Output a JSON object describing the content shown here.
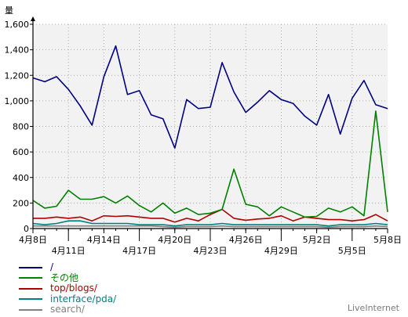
{
  "chart_data": {
    "type": "line",
    "ylabel": "量",
    "ylim": [
      0,
      1600
    ],
    "yticks": [
      "0",
      "200",
      "400",
      "600",
      "800",
      "1,000",
      "1,200",
      "1,400",
      "1,600"
    ],
    "xticks_upper": [
      {
        "i": 0,
        "label": "4月8日"
      },
      {
        "i": 6,
        "label": "4月14日"
      },
      {
        "i": 12,
        "label": "4月20日"
      },
      {
        "i": 18,
        "label": "4月26日"
      },
      {
        "i": 24,
        "label": "5月2日"
      },
      {
        "i": 30,
        "label": "5月8日"
      }
    ],
    "xticks_lower": [
      {
        "i": 3,
        "label": "4月11日"
      },
      {
        "i": 9,
        "label": "4月17日"
      },
      {
        "i": 15,
        "label": "4月23日"
      },
      {
        "i": 21,
        "label": "4月29日"
      },
      {
        "i": 27,
        "label": "5月5日"
      }
    ],
    "grid": true,
    "legend_position": "bottom-left",
    "series": [
      {
        "name": "/",
        "color": "#000080",
        "values": [
          1180,
          1150,
          1190,
          1090,
          960,
          810,
          1190,
          1430,
          1050,
          1080,
          890,
          860,
          630,
          1010,
          940,
          950,
          1300,
          1070,
          910,
          990,
          1080,
          1010,
          980,
          880,
          810,
          1050,
          740,
          1020,
          1160,
          970,
          940
        ]
      },
      {
        "name": "その他",
        "color": "#008000",
        "values": [
          220,
          160,
          175,
          300,
          230,
          230,
          250,
          200,
          255,
          180,
          130,
          200,
          120,
          160,
          110,
          120,
          150,
          465,
          190,
          170,
          100,
          170,
          130,
          90,
          95,
          160,
          130,
          170,
          100,
          920,
          130
        ]
      },
      {
        "name": "top/blogs/",
        "color": "#b00000",
        "values": [
          80,
          80,
          90,
          80,
          90,
          60,
          100,
          95,
          100,
          90,
          80,
          80,
          50,
          80,
          60,
          110,
          150,
          80,
          65,
          75,
          80,
          100,
          60,
          90,
          80,
          70,
          70,
          60,
          70,
          110,
          60
        ]
      },
      {
        "name": "interface/pda/",
        "color": "#008080",
        "values": [
          40,
          30,
          40,
          60,
          60,
          40,
          40,
          40,
          40,
          30,
          30,
          30,
          20,
          30,
          30,
          30,
          40,
          30,
          30,
          30,
          30,
          30,
          30,
          30,
          30,
          20,
          30,
          30,
          30,
          40,
          30
        ]
      },
      {
        "name": "search/",
        "color": "#808080",
        "values": [
          20,
          20,
          20,
          20,
          20,
          20,
          20,
          20,
          20,
          20,
          20,
          15,
          10,
          15,
          15,
          15,
          20,
          15,
          15,
          15,
          15,
          15,
          15,
          15,
          15,
          10,
          15,
          15,
          15,
          20,
          15
        ]
      }
    ]
  },
  "credit": "LiveInternet"
}
